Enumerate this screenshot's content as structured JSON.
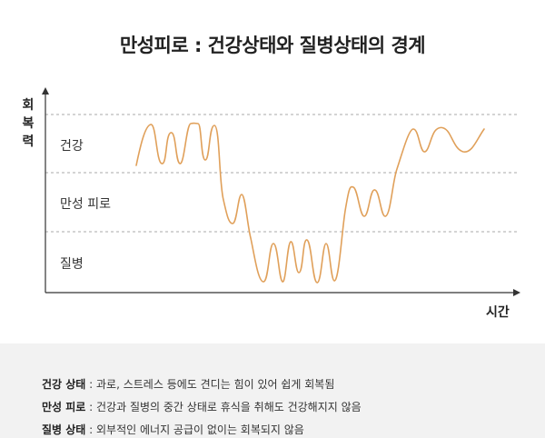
{
  "title": "만성피로 : 건강상태와 질병상태의 경계",
  "yaxis": {
    "chars": [
      "회",
      "복",
      "력"
    ]
  },
  "xaxis": {
    "label": "시간"
  },
  "zones": [
    {
      "label": "건강"
    },
    {
      "label": "만성 피로"
    },
    {
      "label": "질병"
    }
  ],
  "colors": {
    "curve": "#e0a05a",
    "axis": "#333333",
    "guide": "#aaaaaa",
    "footer_bg": "#f2f2f2"
  },
  "descriptions": [
    {
      "term": "건강 상태",
      "sep": " : ",
      "text": "과로, 스트레스 등에도 견디는 힘이 있어 쉽게 회복됨"
    },
    {
      "term": "만성 피로",
      "sep": " : ",
      "text": "건강과 질병의 중간 상태로 휴식을 취해도 건강해지지 않음"
    },
    {
      "term": "질병 상태",
      "sep": " : ",
      "text": "외부적인 에너지 공급이 없이는 회복되지 않음"
    }
  ]
}
